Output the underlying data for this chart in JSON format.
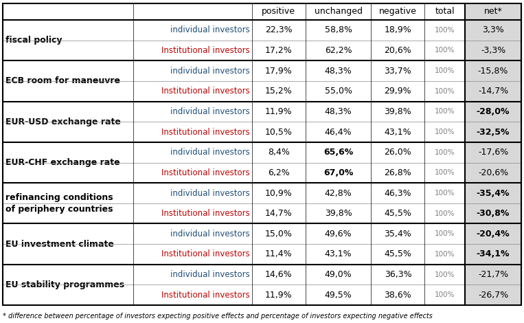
{
  "groups": [
    {
      "topic_lines": [
        "fiscal policy"
      ],
      "rows": [
        {
          "investor": "individual investors",
          "positive": "22,3%",
          "unchanged": "58,8%",
          "negative": "18,9%",
          "total": "100%",
          "net": "3,3%",
          "net_bold": false
        },
        {
          "investor": "Institutional investors",
          "positive": "17,2%",
          "unchanged": "62,2%",
          "negative": "20,6%",
          "total": "100%",
          "net": "-3,3%",
          "net_bold": false
        }
      ],
      "unchanged_bold": false
    },
    {
      "topic_lines": [
        "ECB room for maneuvre"
      ],
      "rows": [
        {
          "investor": "individual investors",
          "positive": "17,9%",
          "unchanged": "48,3%",
          "negative": "33,7%",
          "total": "100%",
          "net": "-15,8%",
          "net_bold": false
        },
        {
          "investor": "Institutional investors",
          "positive": "15,2%",
          "unchanged": "55,0%",
          "negative": "29,9%",
          "total": "100%",
          "net": "-14,7%",
          "net_bold": false
        }
      ],
      "unchanged_bold": false
    },
    {
      "topic_lines": [
        "EUR-USD exchange rate"
      ],
      "rows": [
        {
          "investor": "individual investors",
          "positive": "11,9%",
          "unchanged": "48,3%",
          "negative": "39,8%",
          "total": "100%",
          "net": "-28,0%",
          "net_bold": true
        },
        {
          "investor": "Institutional investors",
          "positive": "10,5%",
          "unchanged": "46,4%",
          "negative": "43,1%",
          "total": "100%",
          "net": "-32,5%",
          "net_bold": true
        }
      ],
      "unchanged_bold": false
    },
    {
      "topic_lines": [
        "EUR-CHF exchange rate"
      ],
      "rows": [
        {
          "investor": "individual investors",
          "positive": "8,4%",
          "unchanged": "65,6%",
          "negative": "26,0%",
          "total": "100%",
          "net": "-17,6%",
          "net_bold": false
        },
        {
          "investor": "Institutional investors",
          "positive": "6,2%",
          "unchanged": "67,0%",
          "negative": "26,8%",
          "total": "100%",
          "net": "-20,6%",
          "net_bold": false
        }
      ],
      "unchanged_bold": true
    },
    {
      "topic_lines": [
        "refinancing conditions",
        "of periphery countries"
      ],
      "rows": [
        {
          "investor": "individual investors",
          "positive": "10,9%",
          "unchanged": "42,8%",
          "negative": "46,3%",
          "total": "100%",
          "net": "-35,4%",
          "net_bold": true
        },
        {
          "investor": "Institutional investors",
          "positive": "14,7%",
          "unchanged": "39,8%",
          "negative": "45,5%",
          "total": "100%",
          "net": "-30,8%",
          "net_bold": true
        }
      ],
      "unchanged_bold": false
    },
    {
      "topic_lines": [
        "EU investment climate"
      ],
      "rows": [
        {
          "investor": "individual investors",
          "positive": "15,0%",
          "unchanged": "49,6%",
          "negative": "35,4%",
          "total": "100%",
          "net": "-20,4%",
          "net_bold": true
        },
        {
          "investor": "Institutional investors",
          "positive": "11,4%",
          "unchanged": "43,1%",
          "negative": "45,5%",
          "total": "100%",
          "net": "-34,1%",
          "net_bold": true
        }
      ],
      "unchanged_bold": false
    },
    {
      "topic_lines": [
        "EU stability programmes"
      ],
      "rows": [
        {
          "investor": "individual investors",
          "positive": "14,6%",
          "unchanged": "49,0%",
          "negative": "36,3%",
          "total": "100%",
          "net": "-21,7%",
          "net_bold": false
        },
        {
          "investor": "Institutional investors",
          "positive": "11,9%",
          "unchanged": "49,5%",
          "negative": "38,6%",
          "total": "100%",
          "net": "-26,7%",
          "net_bold": false
        }
      ],
      "unchanged_bold": false
    }
  ],
  "header_labels": [
    "",
    "",
    "positive",
    "unchanged",
    "negative",
    "total",
    "net*"
  ],
  "footer": "* difference between percentage of investors expecting positive effects and percentage of investors expecting negative effects",
  "col_props": [
    0.215,
    0.195,
    0.088,
    0.108,
    0.088,
    0.066,
    0.093
  ],
  "color_individual": "#1F4E79",
  "color_institutional": "#C00000",
  "color_net_bg": "#D8D8D8",
  "color_total": "#7F7F7F",
  "thick_border_lw": 1.5,
  "thin_border_lw": 0.5,
  "header_fontsize": 9,
  "data_fontsize": 9,
  "topic_fontsize": 9,
  "investor_fontsize": 8.5,
  "total_fontsize": 7.5,
  "footer_fontsize": 7
}
